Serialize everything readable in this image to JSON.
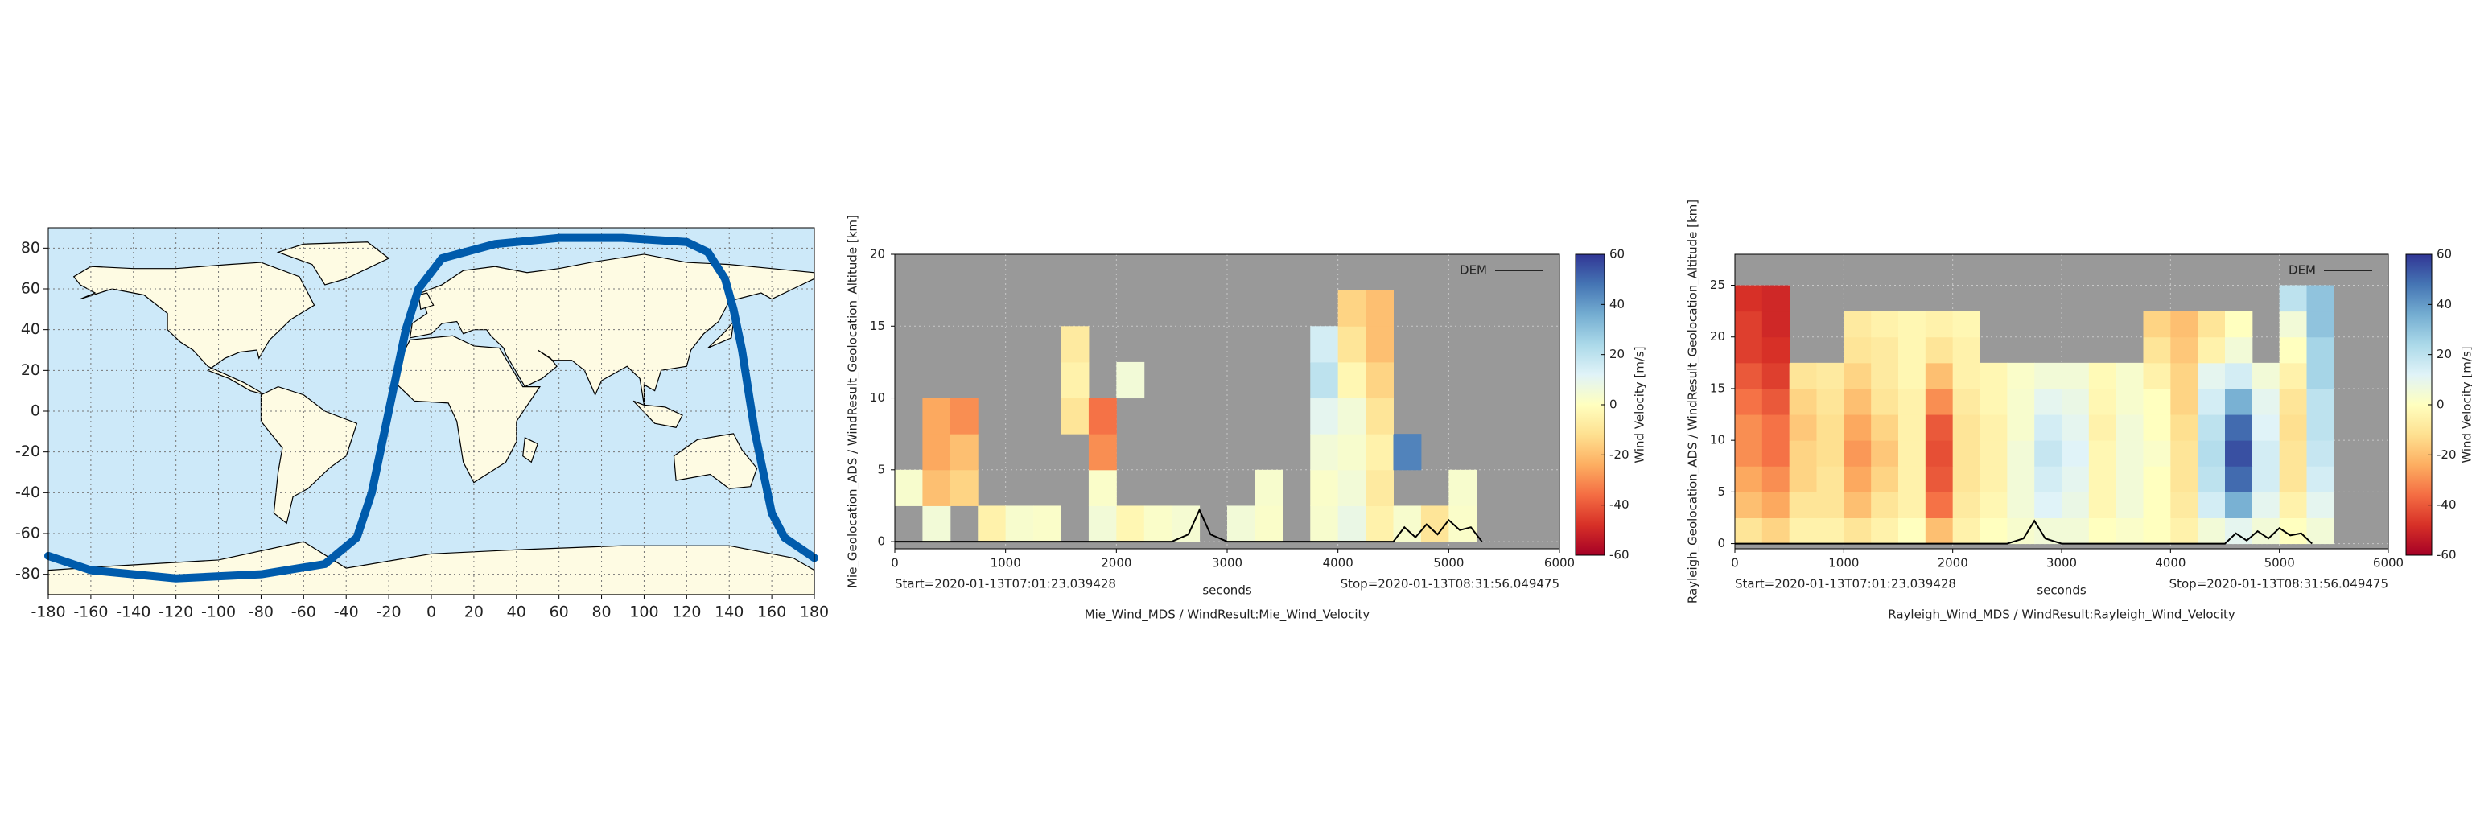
{
  "chart_data": [
    {
      "type": "map",
      "xlim": [
        -180,
        180
      ],
      "xticks": [
        -180,
        -160,
        -140,
        -120,
        -100,
        -80,
        -60,
        -40,
        -20,
        0,
        20,
        40,
        60,
        80,
        100,
        120,
        140,
        160,
        180
      ],
      "ylim": [
        -90,
        90
      ],
      "yticks": [
        -80,
        -60,
        -40,
        -20,
        0,
        20,
        40,
        60,
        80
      ],
      "grid": true,
      "ocean_color": "#cde9f9",
      "land_color": "#fefbe3",
      "series": [
        {
          "color": "#005bac",
          "x": [
            -180,
            -160,
            -120,
            -80,
            -50,
            -35,
            -28,
            -24,
            -20,
            -16,
            -12,
            -6,
            5,
            30,
            60,
            90,
            120,
            130,
            138,
            142,
            146,
            149,
            152,
            156,
            160,
            166,
            180
          ],
          "values": [
            -71,
            -78,
            -82,
            -80,
            -75,
            -62,
            -40,
            -20,
            0,
            20,
            40,
            60,
            75,
            82,
            85,
            85,
            83,
            78,
            65,
            50,
            30,
            10,
            -10,
            -30,
            -50,
            -62,
            -72
          ]
        }
      ]
    },
    {
      "type": "heatmap",
      "title": "Mie_Wind_MDS / WindResult:Mie_Wind_Velocity",
      "xlabel": "seconds",
      "ylabel": "Mie_Geolocation_ADS / WindResult_Geolocation_Altitude [km]",
      "annotations": [
        "Start=2020-01-13T07:01:23.039428",
        "Stop=2020-01-13T08:31:56.049475"
      ],
      "background": "#999999",
      "grid": true,
      "legend": "upper right",
      "xlim": [
        0,
        6000
      ],
      "xticks": [
        0,
        1000,
        2000,
        3000,
        4000,
        5000,
        6000
      ],
      "ylim": [
        -0.5,
        20
      ],
      "yticks": [
        0,
        5,
        10,
        15,
        20
      ],
      "xbins": [
        0,
        250,
        500,
        750,
        1000,
        1250,
        1500,
        1750,
        2000,
        2250,
        2500,
        2750,
        3000,
        3250,
        3500,
        3750,
        4000,
        4250,
        4500,
        4750,
        5000,
        5250,
        5500
      ],
      "ybins": [
        0,
        2.5,
        5,
        7.5,
        10,
        12.5,
        15,
        17.5
      ],
      "values": [
        [
          null,
          5,
          null,
          -5,
          3,
          2,
          null,
          5,
          -3,
          2,
          4,
          null,
          5,
          2,
          null,
          3,
          8,
          -5,
          3,
          -10,
          2,
          null
        ],
        [
          3,
          -20,
          -15,
          null,
          null,
          null,
          null,
          2,
          null,
          null,
          null,
          null,
          null,
          3,
          null,
          2,
          5,
          -8,
          null,
          null,
          3,
          null
        ],
        [
          null,
          -25,
          -20,
          null,
          null,
          null,
          null,
          -30,
          null,
          null,
          null,
          null,
          null,
          null,
          null,
          5,
          3,
          -5,
          45,
          null,
          null,
          null
        ],
        [
          null,
          -25,
          -30,
          null,
          null,
          null,
          -10,
          -35,
          null,
          null,
          null,
          null,
          null,
          null,
          null,
          10,
          5,
          -10,
          null,
          null,
          null,
          null
        ],
        [
          null,
          null,
          null,
          null,
          null,
          null,
          -5,
          null,
          5,
          null,
          null,
          null,
          null,
          null,
          null,
          20,
          -3,
          -15,
          null,
          null,
          null,
          null
        ],
        [
          null,
          null,
          null,
          null,
          null,
          null,
          -8,
          null,
          null,
          null,
          null,
          null,
          null,
          null,
          null,
          15,
          -10,
          -20,
          null,
          null,
          null,
          null
        ],
        [
          null,
          null,
          null,
          null,
          null,
          null,
          null,
          null,
          null,
          null,
          null,
          null,
          null,
          null,
          null,
          null,
          -15,
          -20,
          null,
          null,
          null,
          null
        ]
      ],
      "colorbar": {
        "label": "Wind Velocity [m/s]",
        "lim": [
          -60,
          60
        ],
        "ticks": [
          -60,
          -40,
          -20,
          0,
          20,
          40,
          60
        ],
        "colors": [
          "#a50026",
          "#d73027",
          "#f46d43",
          "#fdae61",
          "#fee090",
          "#ffffbf",
          "#e0f3f8",
          "#abd9e9",
          "#74add1",
          "#4575b4",
          "#313695"
        ]
      },
      "dem": {
        "name": "DEM",
        "color": "#000000",
        "x": [
          0,
          500,
          1000,
          1500,
          2000,
          2500,
          2650,
          2750,
          2850,
          3000,
          3500,
          4000,
          4500,
          4600,
          4700,
          4800,
          4900,
          5000,
          5100,
          5200,
          5300
        ],
        "values": [
          0,
          0,
          0,
          0,
          0,
          0,
          0.5,
          2.2,
          0.5,
          0,
          0,
          0,
          0,
          1,
          0.3,
          1.2,
          0.5,
          1.5,
          0.8,
          1,
          0
        ]
      }
    },
    {
      "type": "heatmap",
      "title": "Rayleigh_Wind_MDS / WindResult:Rayleigh_Wind_Velocity",
      "xlabel": "seconds",
      "ylabel": "Rayleigh_Geolocation_ADS / WindResult_Geolocation_Altitude [km]",
      "annotations": [
        "Start=2020-01-13T07:01:23.039428",
        "Stop=2020-01-13T08:31:56.049475"
      ],
      "background": "#999999",
      "grid": true,
      "legend": "upper right",
      "xlim": [
        0,
        6000
      ],
      "xticks": [
        0,
        1000,
        2000,
        3000,
        4000,
        5000,
        6000
      ],
      "ylim": [
        -0.5,
        28
      ],
      "yticks": [
        0,
        5,
        10,
        15,
        20,
        25
      ],
      "xbins": [
        0,
        250,
        500,
        750,
        1000,
        1250,
        1500,
        1750,
        2000,
        2250,
        2500,
        2750,
        3000,
        3250,
        3500,
        3750,
        4000,
        4250,
        4500,
        4750,
        5000,
        5250,
        5500
      ],
      "ybins": [
        0,
        2.5,
        5,
        7.5,
        10,
        12.5,
        15,
        17.5,
        20,
        22.5,
        25
      ],
      "values": [
        [
          -10,
          -15,
          -5,
          -5,
          -10,
          -5,
          0,
          -20,
          -5,
          0,
          3,
          5,
          5,
          0,
          2,
          0,
          -5,
          5,
          10,
          5,
          0,
          5
        ],
        [
          -20,
          -25,
          -10,
          -10,
          -20,
          -10,
          -5,
          -35,
          -8,
          -3,
          5,
          12,
          8,
          -3,
          5,
          0,
          -8,
          15,
          35,
          10,
          -5,
          10
        ],
        [
          -25,
          -30,
          -15,
          -10,
          -25,
          -15,
          -5,
          -40,
          -10,
          -5,
          5,
          15,
          10,
          -3,
          5,
          0,
          -10,
          20,
          50,
          15,
          -10,
          15
        ],
        [
          -30,
          -35,
          -15,
          -12,
          -28,
          -18,
          -5,
          -42,
          -10,
          -5,
          5,
          18,
          12,
          -3,
          5,
          2,
          -10,
          22,
          55,
          15,
          -10,
          18
        ],
        [
          -30,
          -35,
          -18,
          -12,
          -25,
          -15,
          -5,
          -40,
          -10,
          -5,
          3,
          15,
          10,
          -5,
          5,
          0,
          -12,
          20,
          50,
          12,
          -12,
          20
        ],
        [
          -35,
          -40,
          -15,
          -10,
          -20,
          -10,
          -5,
          -30,
          -8,
          -3,
          3,
          10,
          8,
          -3,
          3,
          0,
          -15,
          15,
          35,
          10,
          -10,
          20
        ],
        [
          -40,
          -45,
          -10,
          -8,
          -15,
          -8,
          -3,
          -20,
          -5,
          -3,
          2,
          5,
          5,
          -2,
          3,
          -5,
          -15,
          10,
          15,
          5,
          -5,
          25
        ],
        [
          -45,
          -48,
          null,
          null,
          -10,
          -8,
          -3,
          -10,
          -5,
          null,
          null,
          null,
          null,
          null,
          null,
          -10,
          -18,
          -5,
          5,
          null,
          0,
          25
        ],
        [
          -45,
          -50,
          null,
          null,
          -8,
          -5,
          -3,
          -5,
          -3,
          null,
          null,
          null,
          null,
          null,
          null,
          -15,
          -20,
          -10,
          0,
          null,
          5,
          30
        ],
        [
          -48,
          -50,
          null,
          null,
          null,
          null,
          null,
          null,
          null,
          null,
          null,
          null,
          null,
          null,
          null,
          null,
          null,
          null,
          null,
          null,
          20,
          30
        ]
      ],
      "colorbar": {
        "label": "Wind Velocity [m/s]",
        "lim": [
          -60,
          60
        ],
        "ticks": [
          -60,
          -40,
          -20,
          0,
          20,
          40,
          60
        ],
        "colors": [
          "#a50026",
          "#d73027",
          "#f46d43",
          "#fdae61",
          "#fee090",
          "#ffffbf",
          "#e0f3f8",
          "#abd9e9",
          "#74add1",
          "#4575b4",
          "#313695"
        ]
      },
      "dem": {
        "name": "DEM",
        "color": "#000000",
        "x": [
          0,
          500,
          1000,
          1500,
          2000,
          2500,
          2650,
          2750,
          2850,
          3000,
          3500,
          4000,
          4500,
          4600,
          4700,
          4800,
          4900,
          5000,
          5100,
          5200,
          5300
        ],
        "values": [
          0,
          0,
          0,
          0,
          0,
          0,
          0.5,
          2.2,
          0.5,
          0,
          0,
          0,
          0,
          1,
          0.3,
          1.2,
          0.5,
          1.5,
          0.8,
          1,
          0
        ]
      }
    }
  ]
}
